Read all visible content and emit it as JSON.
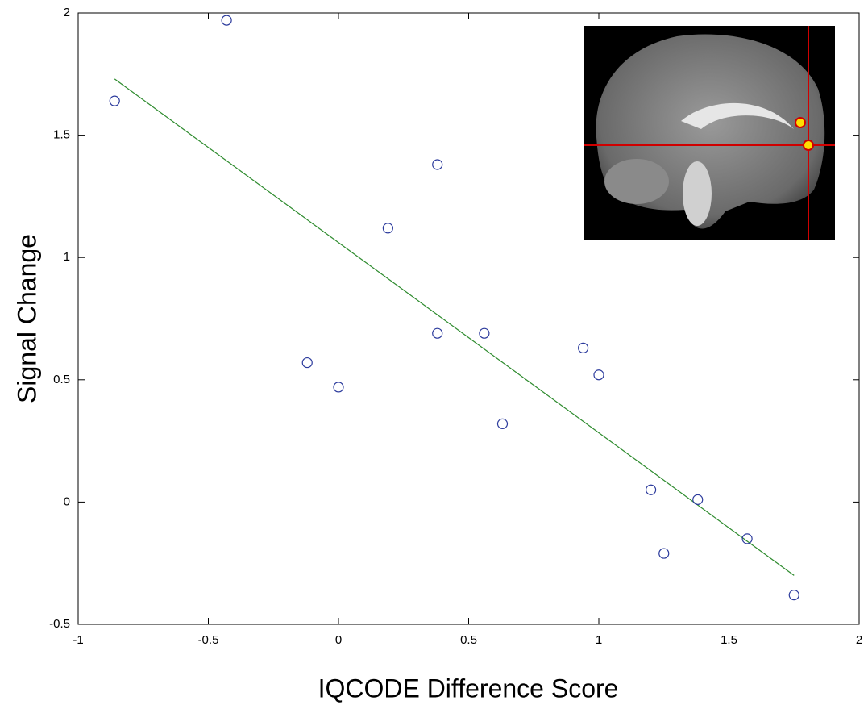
{
  "chart_data": {
    "type": "scatter",
    "x_label": "IQCODE Difference Score",
    "y_label": "Signal Change",
    "x": [
      -0.86,
      -0.43,
      -0.12,
      0.0,
      0.19,
      0.38,
      0.38,
      0.56,
      0.63,
      0.94,
      1.0,
      1.2,
      1.25,
      1.38,
      1.57,
      1.75
    ],
    "y": [
      1.64,
      1.97,
      0.57,
      0.47,
      1.12,
      1.38,
      0.69,
      0.69,
      0.32,
      0.63,
      0.52,
      0.05,
      -0.21,
      0.01,
      -0.15,
      -0.38
    ],
    "color": "#2b3a9c",
    "fit_line": {
      "x": [
        -0.86,
        1.75
      ],
      "y": [
        1.73,
        -0.3
      ],
      "color": "#2e8b2e"
    },
    "xlim": [
      -1,
      2
    ],
    "xticks": [
      -1,
      -0.5,
      0,
      0.5,
      1,
      1.5,
      2
    ],
    "ylim": [
      -0.5,
      2
    ],
    "yticks": [
      -0.5,
      0,
      0.5,
      1,
      1.5,
      2
    ]
  }
}
